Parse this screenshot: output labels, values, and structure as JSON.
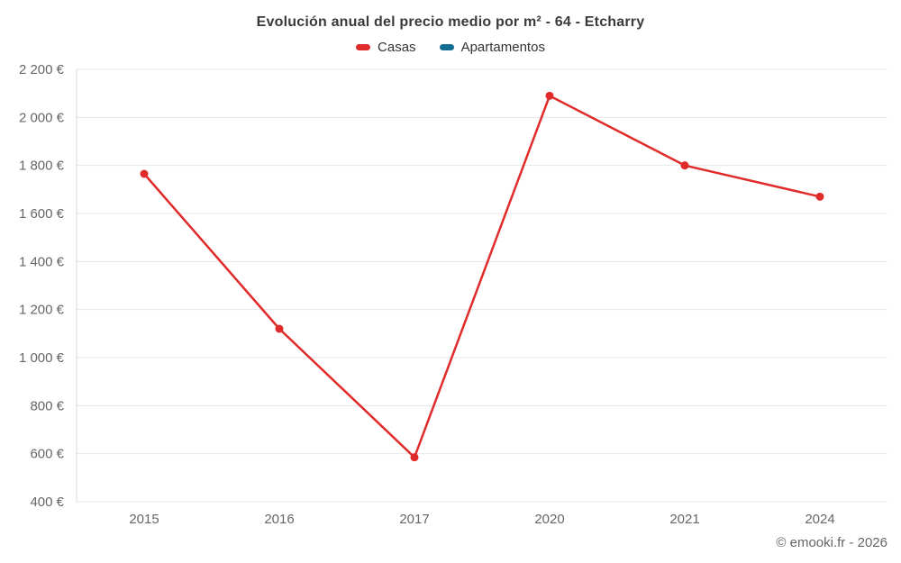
{
  "chart": {
    "title": "Evolución anual del precio medio por m² - 64 - Etcharry",
    "credits": "© emooki.fr - 2026"
  },
  "legend": {
    "items": [
      {
        "label": "Casas",
        "color": "#e02b2b"
      },
      {
        "label": "Apartamentos",
        "color": "#166d94"
      }
    ]
  },
  "chart_data": {
    "type": "line",
    "title": "Evolución anual del precio medio por m² - 64 - Etcharry",
    "categories": [
      "2015",
      "2016",
      "2017",
      "2020",
      "2021",
      "2024"
    ],
    "series": [
      {
        "name": "Casas",
        "color": "#e02b2b",
        "values": [
          1765,
          1120,
          585,
          2090,
          1800,
          1670
        ]
      },
      {
        "name": "Apartamentos",
        "color": "#166d94",
        "values": []
      }
    ],
    "xlabel": "",
    "ylabel": "",
    "ylim": [
      400,
      2200
    ],
    "ytick_step": 200,
    "ytick_suffix": " €",
    "grid": true,
    "gridline_color": "#e6e6e6",
    "axis_line_color": "#d8d8d8",
    "tick_label_color": "#666666",
    "legend_position": "top",
    "marker_radius": 4.5,
    "line_width": 2.5
  }
}
